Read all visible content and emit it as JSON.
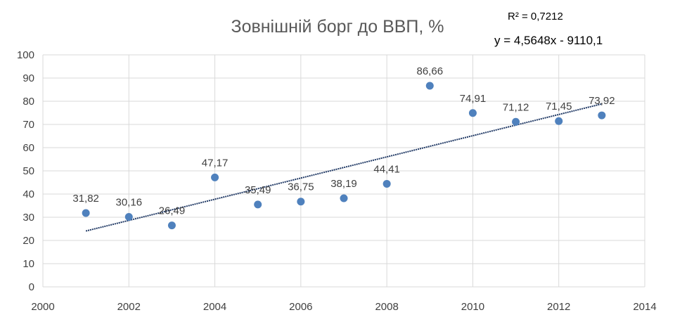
{
  "chart_data": {
    "type": "scatter",
    "title": "Зовнішній борг до ВВП, %",
    "xlabel": "",
    "ylabel": "",
    "xlim": [
      2000,
      2014
    ],
    "ylim": [
      0,
      100
    ],
    "x_ticks": [
      "2000",
      "2002",
      "2004",
      "2006",
      "2008",
      "2010",
      "2012",
      "2014"
    ],
    "y_ticks": [
      "0",
      "10",
      "20",
      "30",
      "40",
      "50",
      "60",
      "70",
      "80",
      "90",
      "100"
    ],
    "grid": true,
    "series": [
      {
        "x": [
          2001,
          2002,
          2003,
          2004,
          2005,
          2006,
          2007,
          2008,
          2009,
          2010,
          2011,
          2012,
          2013
        ],
        "y": [
          31.82,
          30.16,
          26.49,
          47.17,
          35.49,
          36.75,
          38.19,
          44.41,
          86.66,
          74.91,
          71.12,
          71.45,
          73.92
        ],
        "labels": [
          "31,82",
          "30,16",
          "26,49",
          "47,17",
          "35,49",
          "36,75",
          "38,19",
          "44,41",
          "86,66",
          "74,91",
          "71,12",
          "71,45",
          "73,92"
        ],
        "color": "#4f81bd"
      }
    ],
    "trendline": {
      "type": "linear",
      "slope": 4.5648,
      "intercept": -9110.1,
      "x_range": [
        2001,
        2013
      ],
      "color": "#1f3864",
      "equation": "y = 4,5648x - 9110,1",
      "r_squared": "R² = 0,7212"
    }
  }
}
